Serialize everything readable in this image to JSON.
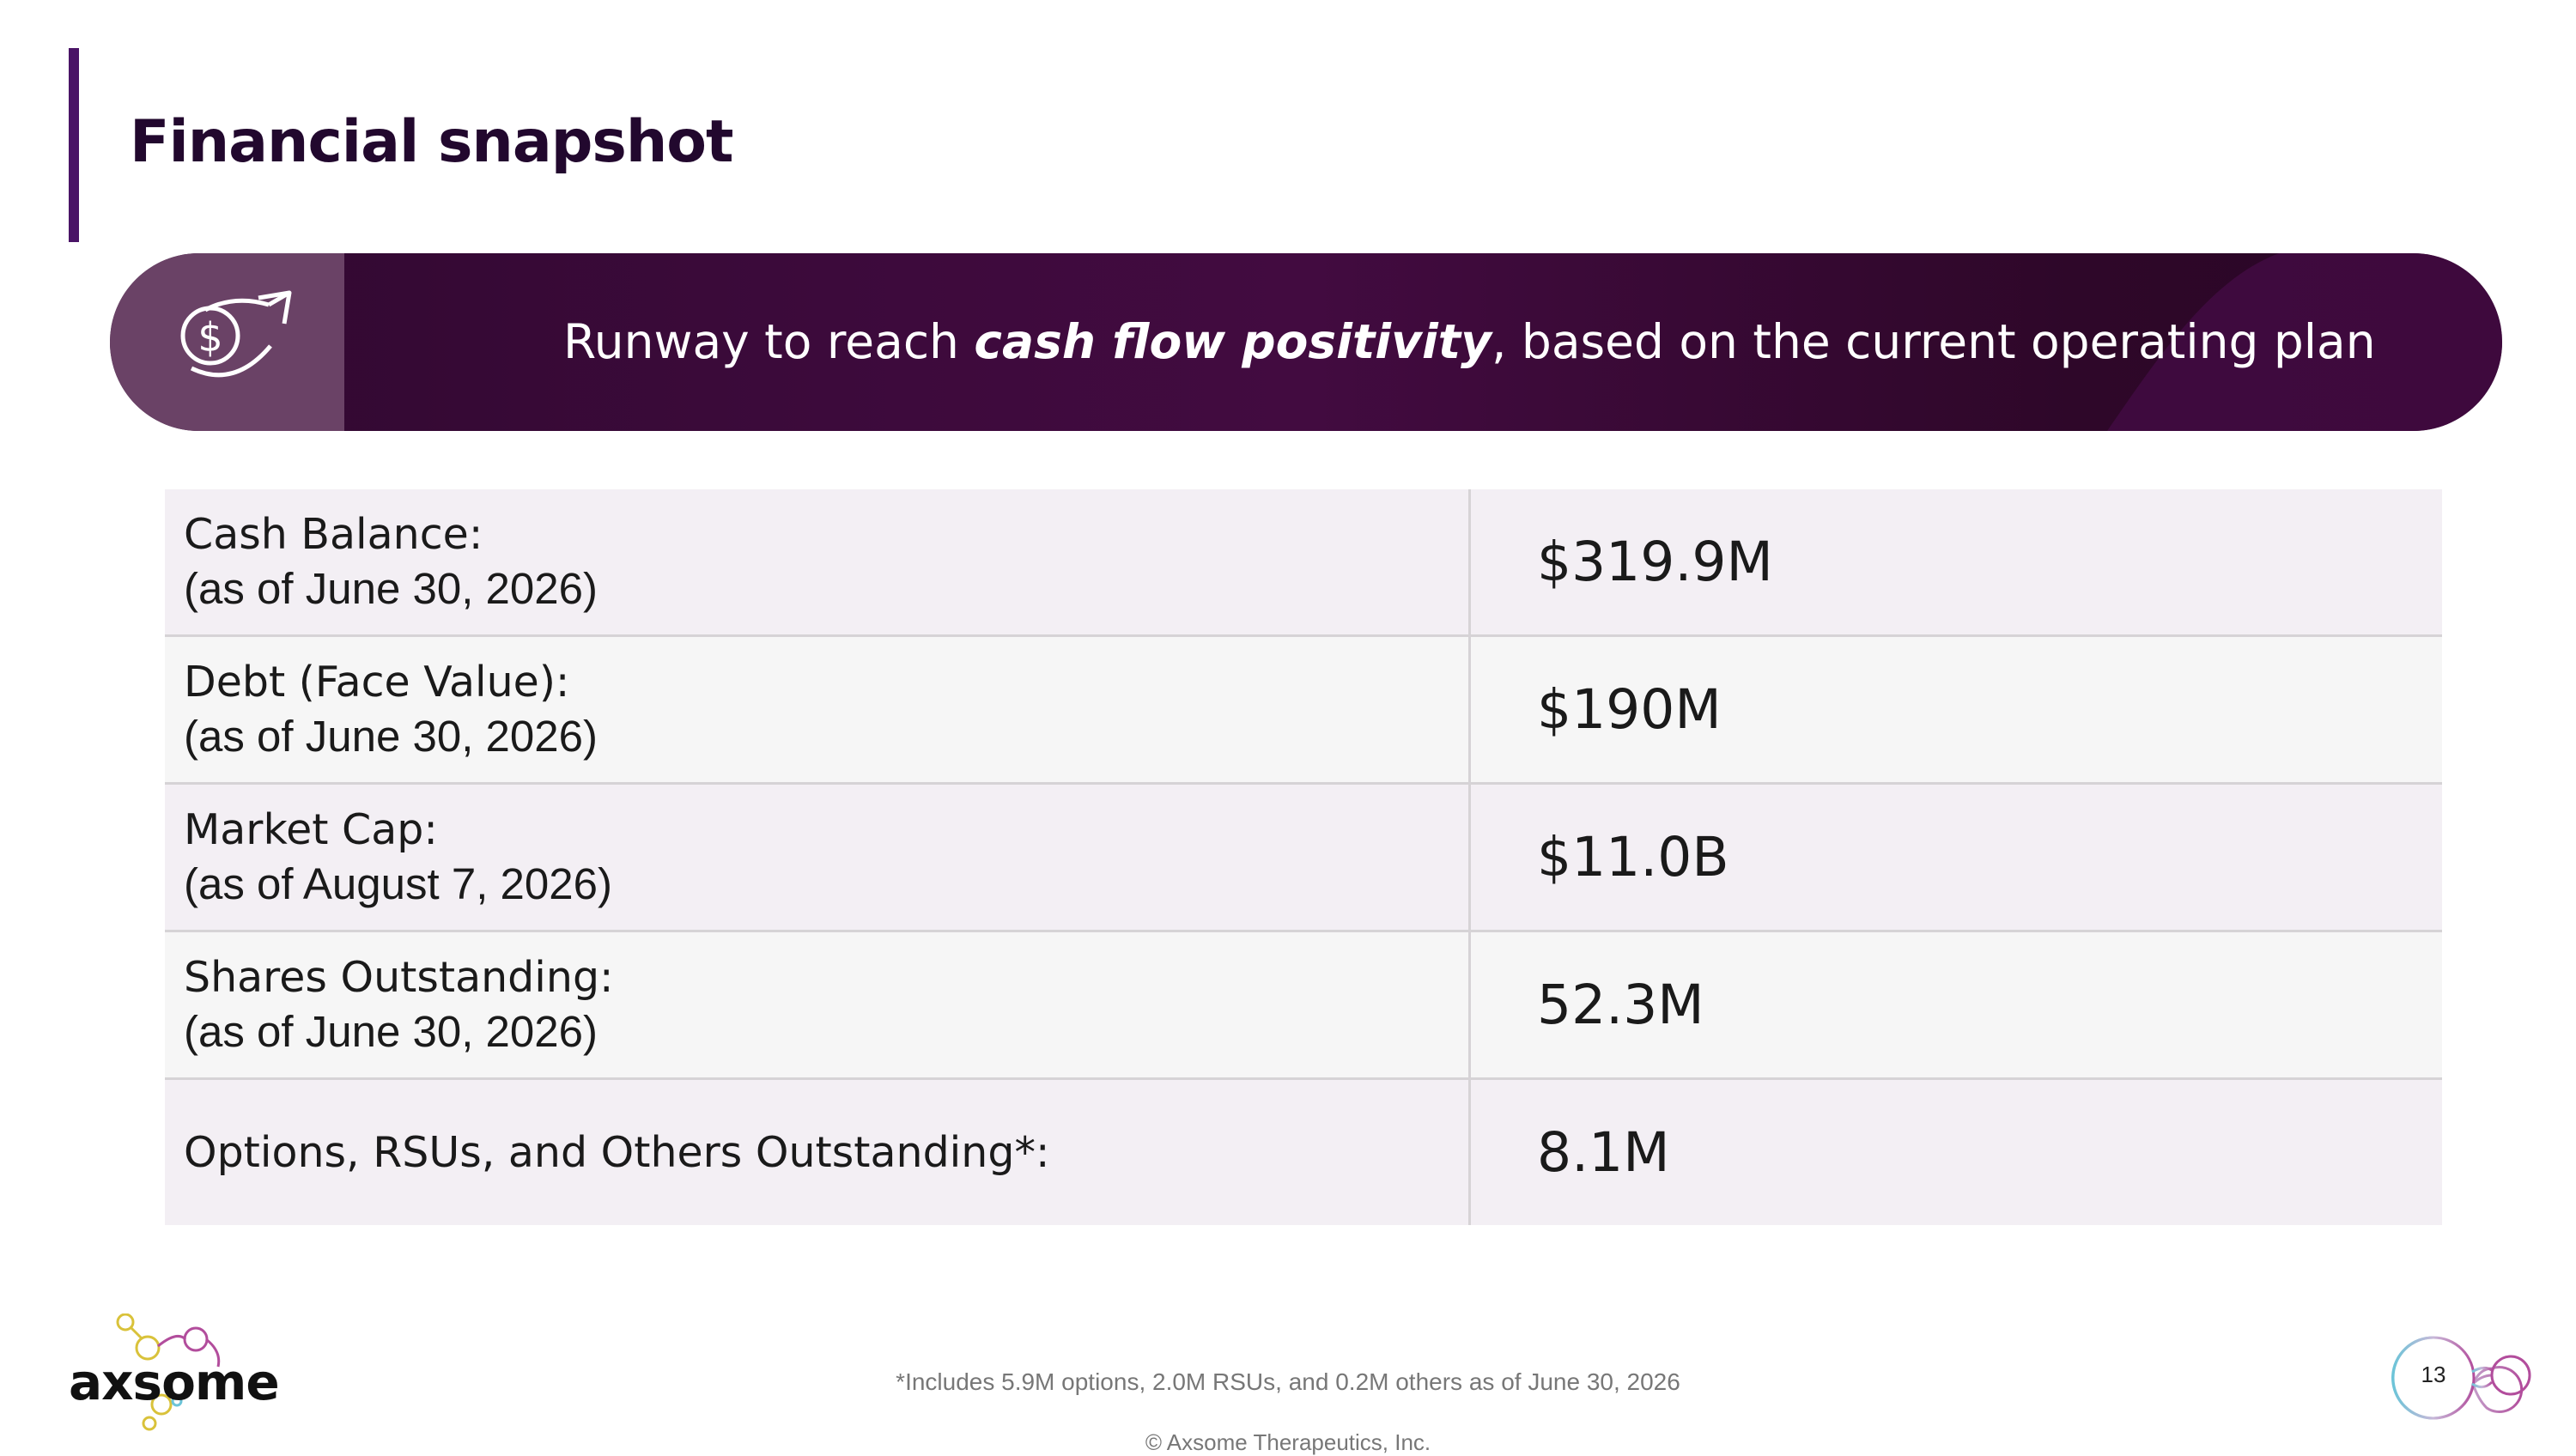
{
  "slide": {
    "title": "Financial snapshot",
    "banner": {
      "icon": "dollar-arrow-icon",
      "text_before": "Runway to reach ",
      "text_emphasis": "cash flow positivity",
      "text_after": ", based on the current operating plan"
    },
    "table": {
      "rows": [
        {
          "label": "Cash Balance:",
          "sub": "(as of June 30, 2026)",
          "value": "$319.9M"
        },
        {
          "label": "Debt (Face Value):",
          "sub": "(as of June 30, 2026)",
          "value": "$190M"
        },
        {
          "label": "Market Cap:",
          "sub": "(as of August 7, 2026)",
          "value": "$11.0B"
        },
        {
          "label": "Shares Outstanding:",
          "sub": "(as of June 30, 2026)",
          "value": "52.3M"
        },
        {
          "label": "Options, RSUs, and Others Outstanding*:",
          "value": "8.1M"
        }
      ]
    },
    "footnote": "*Includes 5.9M options, 2.0M RSUs, and 0.2M others as of June 30, 2026",
    "copyright": "© Axsome Therapeutics, Inc.",
    "page_number": "13",
    "logo_text": "axsome"
  },
  "colors": {
    "accent": "#4a1466",
    "banner": "#3c0a3b",
    "row_tint": "#f3eff4",
    "row_gray": "#f6f6f6"
  }
}
